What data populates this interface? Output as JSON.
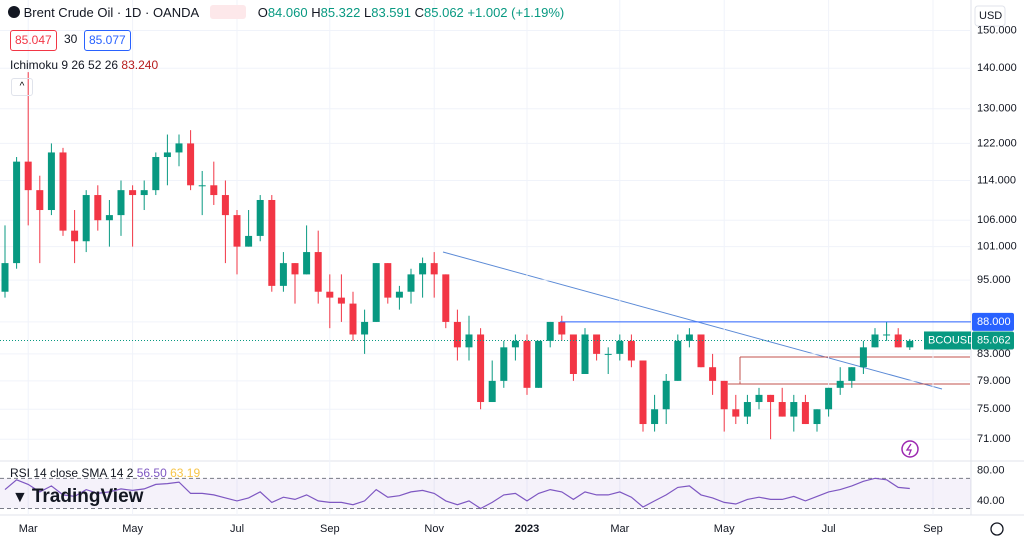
{
  "header": {
    "symbol": "Brent Crude Oil · 1D · OANDA",
    "o_label": "O",
    "open": "84.060",
    "h_label": "H",
    "high": "85.322",
    "l_label": "L",
    "low": "83.591",
    "c_label": "C",
    "close": "85.062",
    "change": "+1.002 (+1.19%)",
    "bid": "85.047",
    "spread": "30",
    "ask": "85.077",
    "currency": "USD"
  },
  "indicator": {
    "name": "Ichimoku 9 26 52 26",
    "value": "83.240"
  },
  "branding": "TradingView",
  "chart_data": {
    "type": "candlestick",
    "categories": [
      null,
      null,
      "Mar",
      null,
      null,
      null,
      null,
      null,
      null,
      null,
      null,
      "May",
      null,
      null,
      null,
      null,
      null,
      null,
      null,
      null,
      "Jul",
      null,
      null,
      null,
      null,
      null,
      null,
      null,
      "Sep",
      null,
      null,
      null,
      null,
      null,
      null,
      null,
      null,
      "Nov",
      null,
      null,
      null,
      null,
      null,
      null,
      null,
      "2023",
      null,
      null,
      null,
      null,
      null,
      null,
      null,
      "Mar",
      null,
      null,
      null,
      null,
      null,
      null,
      null,
      null,
      "May",
      null,
      null,
      null,
      null,
      null,
      null,
      null,
      null,
      "Jul",
      null,
      null,
      null,
      null,
      null,
      null,
      null,
      null,
      "Sep"
    ],
    "open": [
      93,
      98,
      118,
      112,
      108,
      120,
      104,
      102,
      111,
      106,
      107,
      112,
      111,
      112,
      119,
      120,
      122,
      113,
      113,
      111,
      107,
      101,
      103,
      110,
      94,
      98,
      96,
      100,
      93,
      92,
      91,
      86,
      88,
      98,
      92,
      93,
      96,
      98,
      96,
      88,
      84,
      86,
      76,
      79,
      84,
      85,
      78,
      85,
      88,
      86,
      80,
      86,
      83,
      83,
      85,
      82,
      73,
      75,
      79,
      85,
      86,
      81,
      79,
      75,
      74,
      76,
      77,
      76,
      74,
      76,
      73,
      75,
      78,
      79,
      81,
      84,
      86,
      86,
      84,
      null,
      null
    ],
    "high": [
      105,
      119,
      139,
      115,
      122,
      121,
      108,
      112,
      113,
      110,
      114,
      113,
      114,
      120,
      124,
      124,
      125,
      116,
      118,
      114,
      108,
      108,
      111,
      111,
      100,
      98,
      105,
      104,
      96,
      96,
      93,
      90,
      98,
      98,
      94,
      97,
      99,
      100,
      96,
      90,
      89,
      87,
      82,
      85,
      86,
      86,
      85,
      88,
      89,
      86,
      87,
      86,
      84,
      86,
      86,
      82,
      77,
      80,
      86,
      87,
      86,
      83,
      79,
      77,
      77,
      78,
      77,
      78,
      77,
      77,
      75,
      78,
      81,
      81,
      85,
      87,
      88,
      87,
      85.3,
      null,
      null
    ],
    "low": [
      92,
      97,
      105,
      98,
      107,
      103,
      98,
      100,
      104,
      101,
      103,
      101,
      108,
      111,
      113,
      117,
      112,
      107,
      109,
      98,
      96,
      101,
      102,
      93,
      93,
      91,
      96,
      91,
      87,
      88,
      85,
      83,
      88,
      91,
      90,
      91,
      92,
      92,
      87,
      82,
      82,
      75,
      76,
      78,
      82,
      77,
      78,
      84,
      85,
      79,
      80,
      82,
      80,
      82,
      81,
      72,
      72,
      73,
      79,
      84,
      81,
      77,
      72,
      73,
      73,
      75,
      71,
      74,
      72,
      73,
      72,
      74,
      77,
      78,
      80,
      84,
      85,
      84,
      83.6,
      null,
      null
    ],
    "close": [
      98,
      118,
      112,
      108,
      120,
      104,
      102,
      111,
      106,
      107,
      112,
      111,
      112,
      119,
      120,
      122,
      113,
      113,
      111,
      107,
      101,
      103,
      110,
      94,
      98,
      96,
      100,
      93,
      92,
      91,
      86,
      88,
      98,
      92,
      93,
      96,
      98,
      96,
      88,
      84,
      86,
      76,
      79,
      84,
      85,
      78,
      85,
      88,
      86,
      80,
      86,
      83,
      83,
      85,
      82,
      73,
      75,
      79,
      85,
      86,
      81,
      79,
      75,
      74,
      76,
      77,
      76,
      74,
      76,
      73,
      75,
      78,
      79,
      81,
      84,
      86,
      86,
      84,
      85,
      null,
      null
    ],
    "up_color": "#089981",
    "down_color": "#f23645",
    "log_scale": true,
    "grid": true,
    "ylim": [
      68.6,
      151.8
    ],
    "yticks": [
      {
        "value": 71,
        "label": "71.000"
      },
      {
        "value": 75,
        "label": "75.000"
      },
      {
        "value": 79,
        "label": "79.000"
      },
      {
        "value": 83,
        "label": "83.000"
      },
      {
        "value": 88,
        "label": "88.000"
      },
      {
        "value": 95,
        "label": "95.000"
      },
      {
        "value": 101,
        "label": "101.000"
      },
      {
        "value": 106,
        "label": "106.000"
      },
      {
        "value": 114,
        "label": "114.000"
      },
      {
        "value": 122,
        "label": "122.000"
      },
      {
        "value": 130,
        "label": "130.000"
      },
      {
        "value": 140,
        "label": "140.000"
      },
      {
        "value": 150,
        "label": "150.000"
      }
    ],
    "price_lines": [
      {
        "value": 88,
        "label": "88.000",
        "color": "#2962ff"
      }
    ],
    "last_price": {
      "name": "BCOUSD",
      "value": 85.062,
      "label": "85.062",
      "color": "#089981"
    },
    "rsi": {
      "title": "RSI 14 close SMA 14 2",
      "value_label": "56.50",
      "sma_label": "63.19",
      "color": "#7e57c2",
      "ylim": [
        24,
        93
      ],
      "yticks": [
        {
          "value": 80,
          "label": "80.00"
        },
        {
          "value": 40,
          "label": "40.00"
        }
      ],
      "levels": [
        70,
        30
      ],
      "values": [
        55,
        68,
        62,
        52,
        60,
        48,
        46,
        55,
        50,
        52,
        56,
        54,
        56,
        62,
        63,
        65,
        50,
        50,
        48,
        44,
        40,
        44,
        52,
        38,
        45,
        42,
        48,
        40,
        38,
        38,
        35,
        40,
        55,
        45,
        47,
        52,
        54,
        50,
        40,
        35,
        40,
        30,
        38,
        48,
        50,
        40,
        50,
        55,
        52,
        42,
        52,
        48,
        48,
        52,
        45,
        32,
        40,
        48,
        58,
        60,
        48,
        44,
        38,
        36,
        42,
        45,
        42,
        42,
        46,
        40,
        46,
        52,
        55,
        60,
        66,
        70,
        68,
        58,
        56.5,
        null,
        null
      ]
    }
  }
}
